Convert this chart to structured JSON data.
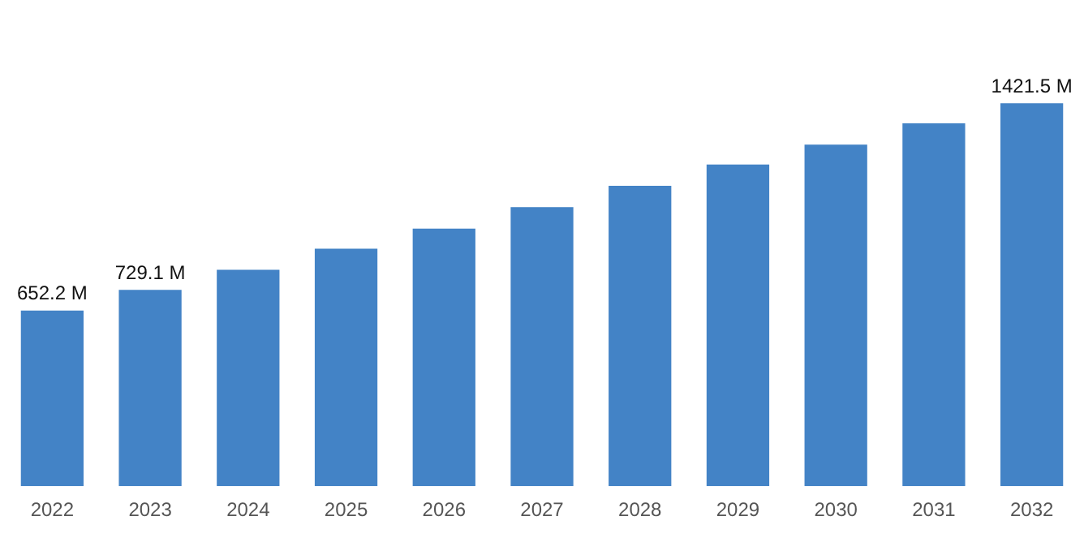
{
  "chart_data": {
    "type": "bar",
    "categories": [
      "2022",
      "2023",
      "2024",
      "2025",
      "2026",
      "2027",
      "2028",
      "2029",
      "2030",
      "2031",
      "2032"
    ],
    "values": [
      652.2,
      729.1,
      803,
      882,
      956,
      1036,
      1115,
      1194,
      1268,
      1347,
      1421.5
    ],
    "value_labels": [
      "652.2 M",
      "729.1 M",
      null,
      null,
      null,
      null,
      null,
      null,
      null,
      null,
      "1421.5 M"
    ],
    "color": "#4383c6",
    "grid": false,
    "legend": false
  }
}
